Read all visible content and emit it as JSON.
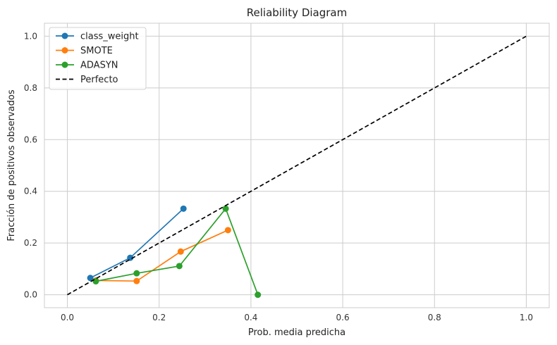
{
  "chart_data": {
    "type": "line",
    "title": "Reliability Diagram",
    "xlabel": "Prob. media predicha",
    "ylabel": "Fracción de positivos observados",
    "xlim": [
      -0.05,
      1.05
    ],
    "ylim": [
      -0.05,
      1.05
    ],
    "xticks": [
      0.0,
      0.2,
      0.4,
      0.6,
      0.8,
      1.0
    ],
    "yticks": [
      0.0,
      0.2,
      0.4,
      0.6,
      0.8,
      1.0
    ],
    "xtick_labels": [
      "0.0",
      "0.2",
      "0.4",
      "0.6",
      "0.8",
      "1.0"
    ],
    "ytick_labels": [
      "0.0",
      "0.2",
      "0.4",
      "0.6",
      "0.8",
      "1.0"
    ],
    "grid": true,
    "legend_position": "top-left",
    "series": [
      {
        "name": "class_weight",
        "color": "#1f77b4",
        "style": "line-marker",
        "x": [
          0.05,
          0.137,
          0.253
        ],
        "y": [
          0.065,
          0.143,
          0.333
        ]
      },
      {
        "name": "SMOTE",
        "color": "#ff7f0e",
        "style": "line-marker",
        "x": [
          0.062,
          0.151,
          0.247,
          0.35
        ],
        "y": [
          0.055,
          0.053,
          0.167,
          0.25
        ]
      },
      {
        "name": "ADASYN",
        "color": "#2ca02c",
        "style": "line-marker",
        "x": [
          0.062,
          0.151,
          0.244,
          0.345,
          0.415
        ],
        "y": [
          0.052,
          0.083,
          0.111,
          0.333,
          0.0
        ]
      },
      {
        "name": "Perfecto",
        "color": "#000000",
        "style": "dashed",
        "x": [
          0.0,
          1.0
        ],
        "y": [
          0.0,
          1.0
        ]
      }
    ]
  }
}
